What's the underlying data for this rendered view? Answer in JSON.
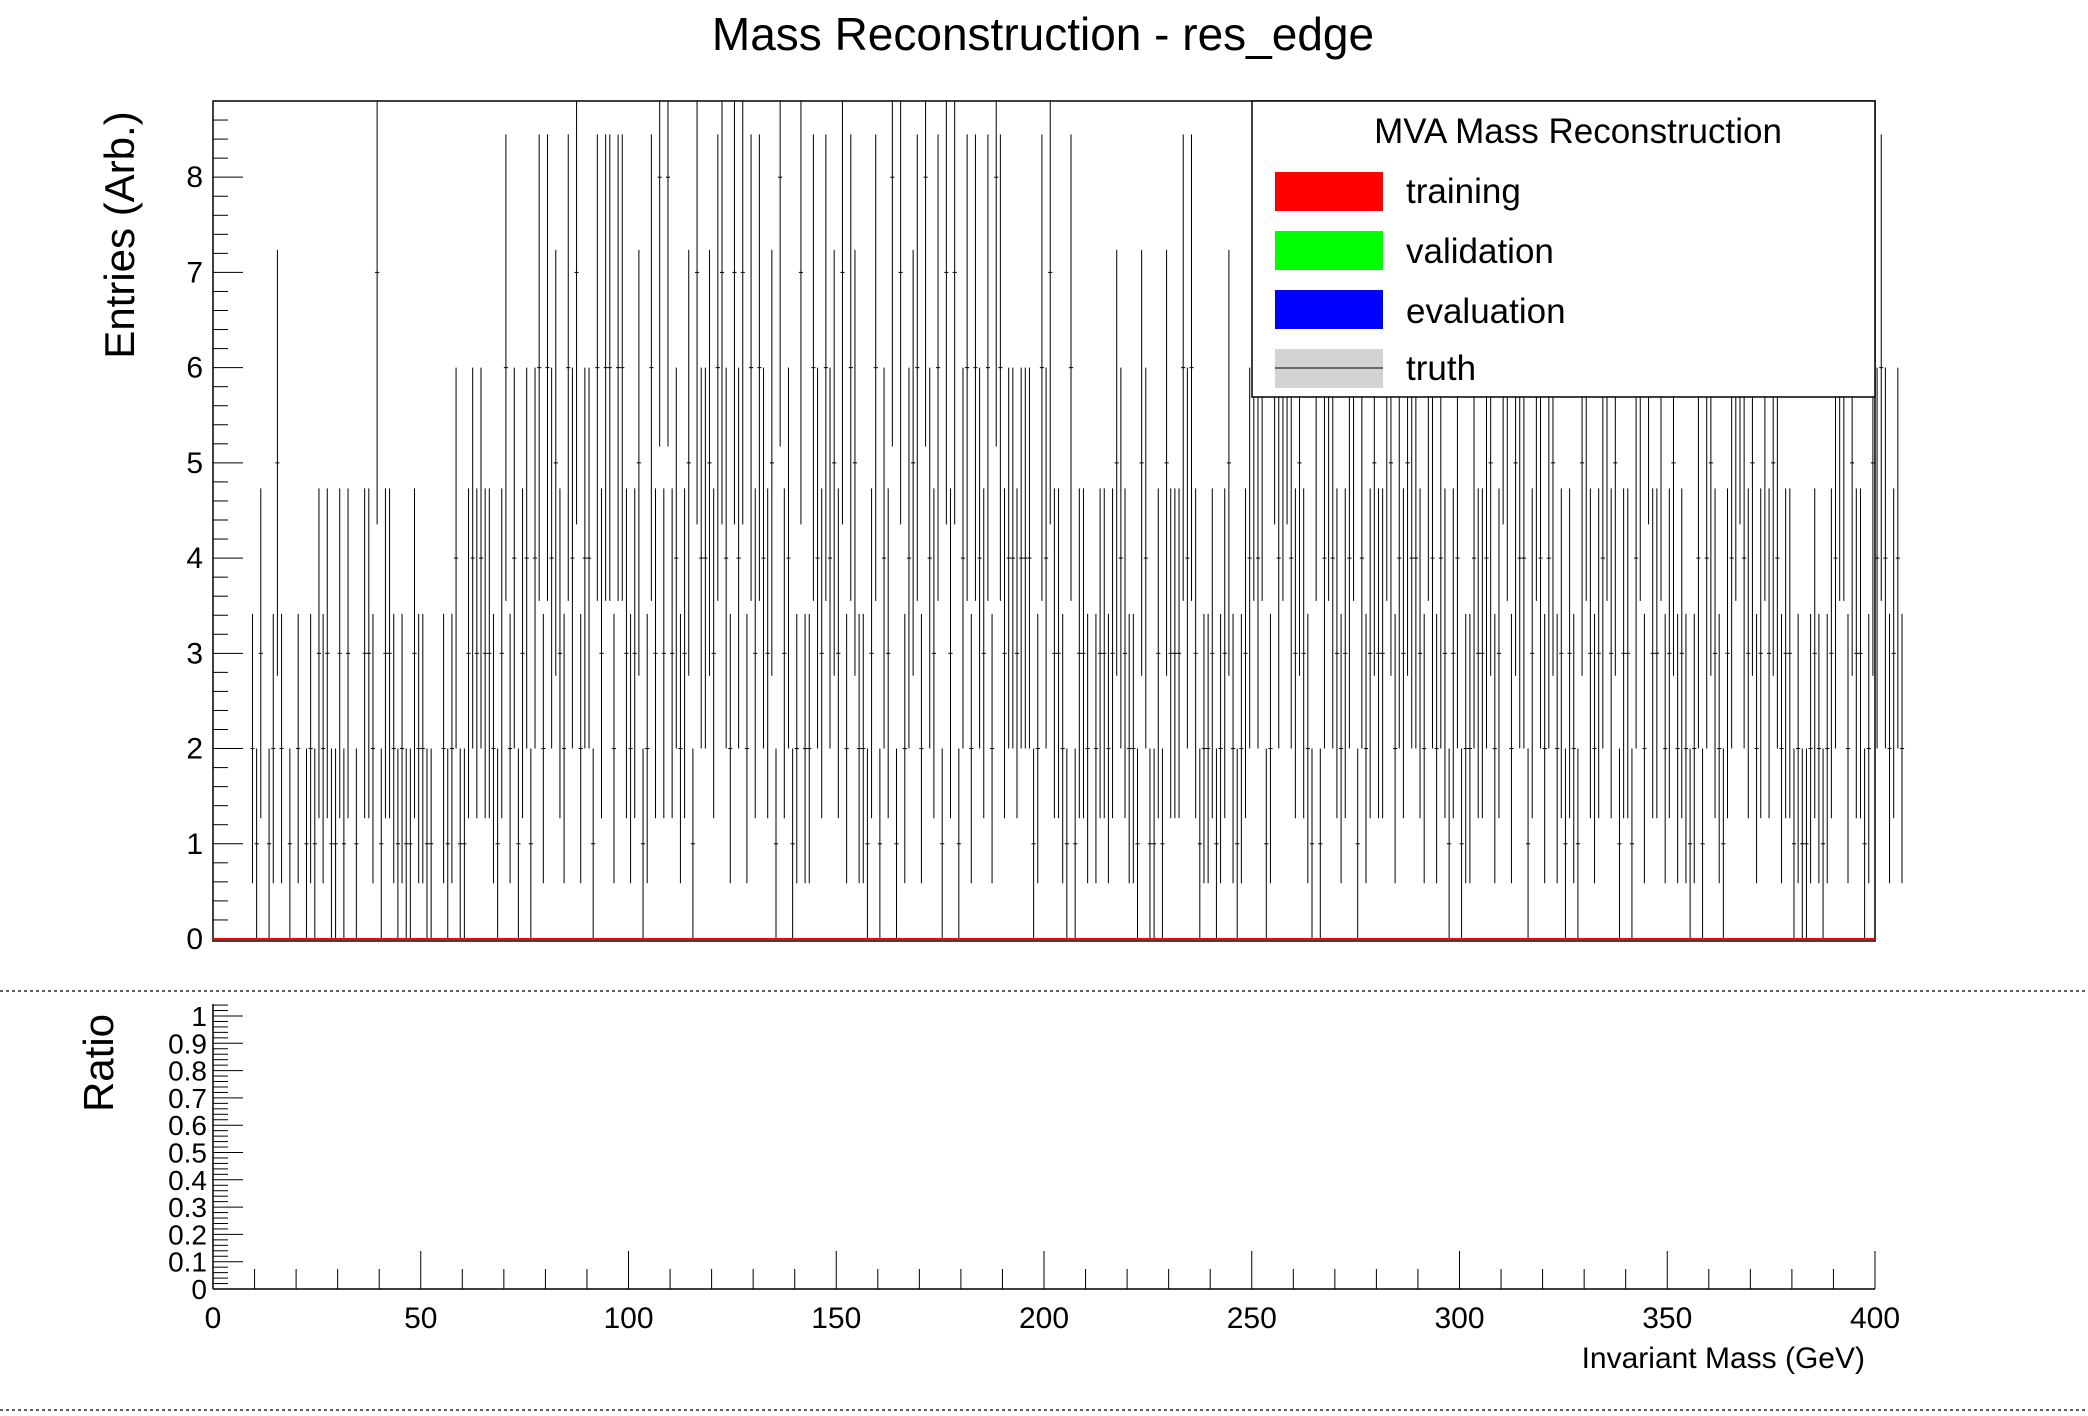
{
  "chart_data": {
    "type": "bar",
    "title": "Mass Reconstruction - res_edge",
    "ylabel": "Entries (Arb.)",
    "xlabel": "Invariant Mass (GeV)",
    "ratio_ylabel": "Ratio",
    "xlim": [
      0,
      400
    ],
    "ylim": [
      0,
      8.8
    ],
    "ratio_ylim": [
      0,
      1.05
    ],
    "x_ticks": [
      0,
      50,
      100,
      150,
      200,
      250,
      300,
      350,
      400
    ],
    "y_ticks": [
      0,
      1,
      2,
      3,
      4,
      5,
      6,
      7,
      8
    ],
    "ratio_y_ticks": [
      0,
      0.1,
      0.2,
      0.3,
      0.4,
      0.5,
      0.6,
      0.7,
      0.8,
      0.9,
      1
    ],
    "ratio_y_tick_labels": [
      "0",
      "0.1",
      "0.2",
      "0.3",
      "0.4",
      "0.5",
      "0.6",
      "0.7",
      "0.8",
      "0.9",
      "1"
    ],
    "legend": {
      "title": "MVA Mass Reconstruction",
      "placement": "top-right",
      "entries": [
        {
          "label": "training",
          "color": "#ff0000",
          "style": "fill"
        },
        {
          "label": "validation",
          "color": "#00ff00",
          "style": "fill"
        },
        {
          "label": "evaluation",
          "color": "#0000ff",
          "style": "fill"
        },
        {
          "label": "truth",
          "color": "#d3d3d3",
          "style": "fill-line"
        }
      ]
    },
    "series": [
      {
        "name": "truth",
        "color": "#000000",
        "style": "errorbar-points",
        "x_start": 0,
        "bin_width": 1,
        "values": [
          0,
          0,
          0,
          0,
          0,
          0,
          0,
          0,
          0,
          2,
          1,
          3,
          0,
          1,
          2,
          5,
          2,
          0,
          1,
          0,
          2,
          0,
          1,
          2,
          1,
          3,
          2,
          3,
          1,
          1,
          3,
          1,
          3,
          0,
          1,
          0,
          3,
          3,
          2,
          7,
          1,
          3,
          3,
          2,
          1,
          2,
          1,
          1,
          3,
          2,
          2,
          1,
          1,
          0,
          0,
          2,
          1,
          2,
          4,
          1,
          1,
          3,
          4,
          3,
          4,
          3,
          3,
          2,
          1,
          3,
          6,
          2,
          4,
          1,
          3,
          4,
          1,
          4,
          6,
          2,
          6,
          4,
          5,
          3,
          2,
          6,
          4,
          7,
          2,
          4,
          4,
          1,
          6,
          3,
          6,
          6,
          2,
          6,
          6,
          3,
          2,
          3,
          5,
          1,
          2,
          6,
          3,
          8,
          3,
          8,
          3,
          4,
          2,
          3,
          5,
          1,
          7,
          4,
          4,
          5,
          3,
          6,
          7,
          4,
          2,
          7,
          4,
          7,
          2,
          6,
          3,
          6,
          4,
          3,
          5,
          1,
          8,
          3,
          4,
          1,
          2,
          7,
          2,
          2,
          6,
          4,
          3,
          6,
          4,
          5,
          3,
          7,
          2,
          6,
          5,
          2,
          2,
          1,
          3,
          6,
          1,
          4,
          3,
          8,
          1,
          7,
          2,
          4,
          5,
          6,
          2,
          8,
          4,
          3,
          6,
          1,
          7,
          3,
          7,
          1,
          4,
          6,
          2,
          6,
          4,
          3,
          6,
          2,
          8,
          6,
          3,
          4,
          4,
          3,
          4,
          4,
          4,
          1,
          2,
          6,
          4,
          7,
          3,
          3,
          2,
          1,
          6,
          1,
          3,
          3,
          2,
          0,
          2,
          3,
          3,
          2,
          3,
          5,
          4,
          3,
          2,
          2,
          1,
          5,
          4,
          1,
          1,
          3,
          1,
          5,
          3,
          3,
          3,
          6,
          4,
          6,
          3,
          1,
          2,
          2,
          3,
          1,
          2,
          3,
          5,
          2,
          1,
          2,
          3,
          4,
          6,
          4,
          6,
          1,
          2,
          7,
          4,
          6,
          7,
          4,
          3,
          5,
          3,
          2,
          1,
          6,
          1,
          4,
          6,
          4,
          3,
          2,
          3,
          4,
          6,
          1,
          4,
          2,
          3,
          5,
          3,
          3,
          6,
          5,
          2,
          4,
          3,
          5,
          4,
          4,
          3,
          2,
          6,
          4,
          2,
          4,
          3,
          1,
          3,
          4,
          1,
          2,
          2,
          4,
          3,
          3,
          4,
          5,
          2,
          3,
          7,
          6,
          2,
          5,
          4,
          4,
          1,
          3,
          6,
          4,
          2,
          4,
          5,
          2,
          3,
          1,
          3,
          2,
          1,
          5,
          6,
          3,
          2,
          3,
          4,
          6,
          3,
          5,
          1,
          3,
          3,
          1,
          4,
          6,
          2,
          7,
          3,
          3,
          6,
          2,
          3,
          5,
          2,
          3,
          2,
          1,
          2,
          4,
          1,
          4,
          5,
          3,
          2,
          1,
          3,
          4,
          6,
          7,
          4,
          3,
          5,
          2,
          3,
          6,
          3,
          5,
          4,
          2,
          3,
          3,
          1,
          2,
          1,
          1,
          2,
          3,
          2,
          1,
          2,
          3,
          4,
          6,
          6,
          2,
          5,
          3,
          3,
          1,
          2,
          5,
          4,
          6,
          4,
          2,
          3,
          4,
          2
        ]
      },
      {
        "name": "training",
        "color": "#ff0000",
        "style": "line",
        "x_start": 0,
        "bin_width": 400,
        "values": [
          0
        ]
      }
    ],
    "ratio_series": {
      "name": "ratio",
      "x": [],
      "y": []
    }
  }
}
